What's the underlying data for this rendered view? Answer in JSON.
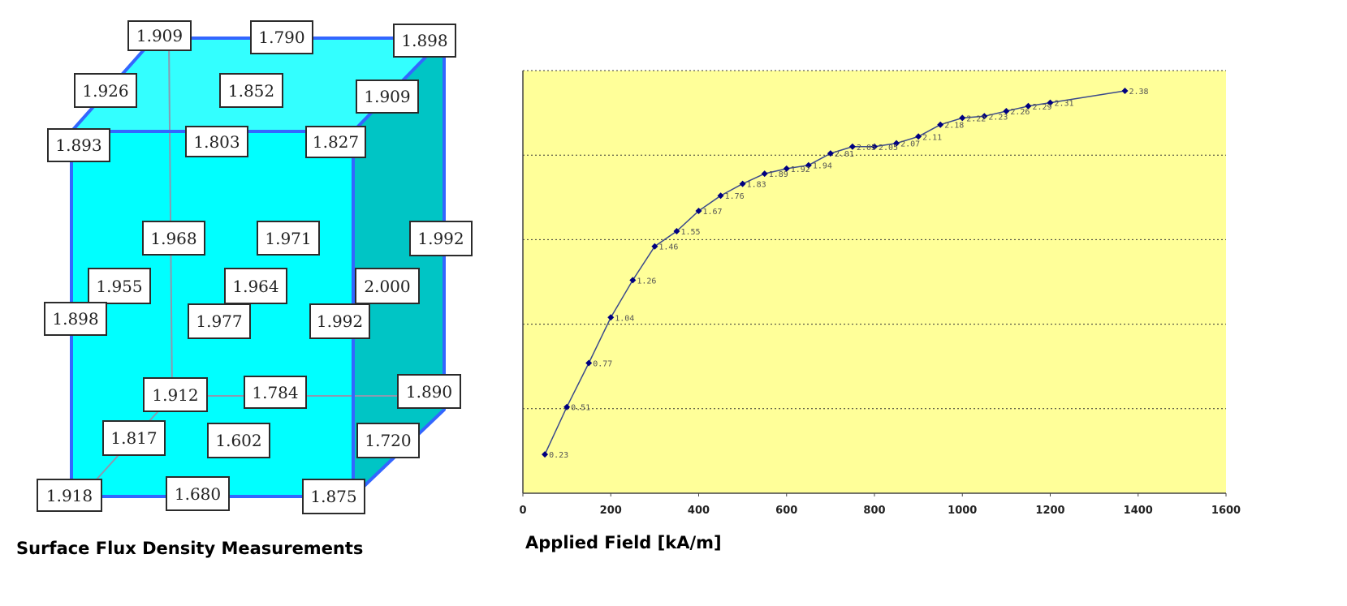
{
  "cube": {
    "caption": "Surface Flux Density Measurements",
    "colors": {
      "front": "#00ffff",
      "top": "#33ffff",
      "side": "#00c5c5",
      "edge": "#3366ff"
    },
    "labels": {
      "top_back_left": "1.909",
      "top_back_mid": "1.790",
      "top_back_right": "1.898",
      "top_left": "1.926",
      "top_center": "1.852",
      "top_right": "1.909",
      "top_front_left": "1.893",
      "top_front_mid": "1.803",
      "top_front_right": "1.827",
      "mid_back_left": "1.968",
      "mid_back_mid": "1.971",
      "mid_back_right": "1.992",
      "mid_left": "1.955",
      "mid_center": "1.964",
      "mid_right": "2.000",
      "mid_front_left": "1.898",
      "mid_front_mid": "1.977",
      "mid_front_right": "1.992",
      "bot_back_left": "1.912",
      "bot_back_mid": "1.784",
      "bot_back_right": "1.890",
      "bot_left": "1.817",
      "bot_center": "1.602",
      "bot_right": "1.720",
      "bot_front_left": "1.918",
      "bot_front_mid": "1.680",
      "bot_front_right": "1.875"
    }
  },
  "chart_data": {
    "type": "line",
    "xlabel": "Applied Field [kA/m]",
    "ylabel": "",
    "title": "",
    "xlim": [
      0,
      1600
    ],
    "ylim": [
      0,
      2.5
    ],
    "x_ticks": [
      "0",
      "200",
      "400",
      "600",
      "800",
      "1000",
      "1200",
      "1400",
      "1600"
    ],
    "y_ticks": [
      "0",
      "0.5",
      "1",
      "1.5",
      "2",
      "2.5"
    ],
    "grid": "horizontal-dotted",
    "plot_background": "#ffff99",
    "line_color": "#3b4a8c",
    "marker_color": "#000080",
    "series": [
      {
        "x": [
          50,
          100,
          150,
          200,
          250,
          300,
          350,
          400,
          450,
          500,
          550,
          600,
          650,
          700,
          750,
          800,
          850,
          900,
          950,
          1000,
          1050,
          1100,
          1150,
          1200,
          1370
        ],
        "values": [
          0.23,
          0.51,
          0.77,
          1.04,
          1.26,
          1.46,
          1.55,
          1.67,
          1.76,
          1.83,
          1.89,
          1.92,
          1.94,
          2.01,
          2.05,
          2.05,
          2.07,
          2.11,
          2.18,
          2.22,
          2.23,
          2.26,
          2.29,
          2.31,
          2.38
        ],
        "labels": [
          "0.23",
          "0.51",
          "0.77",
          "1.04",
          "1.26",
          "1.46",
          "1.55",
          "1.67",
          "1.76",
          "1.83",
          "1.89",
          "1.92",
          "1.94",
          "2.01",
          "2.05",
          "2.05",
          "2.07",
          "2.11",
          "2.18",
          "2.22",
          "2.23",
          "2.26",
          "2.29",
          "2.31",
          "2.38"
        ]
      }
    ]
  }
}
